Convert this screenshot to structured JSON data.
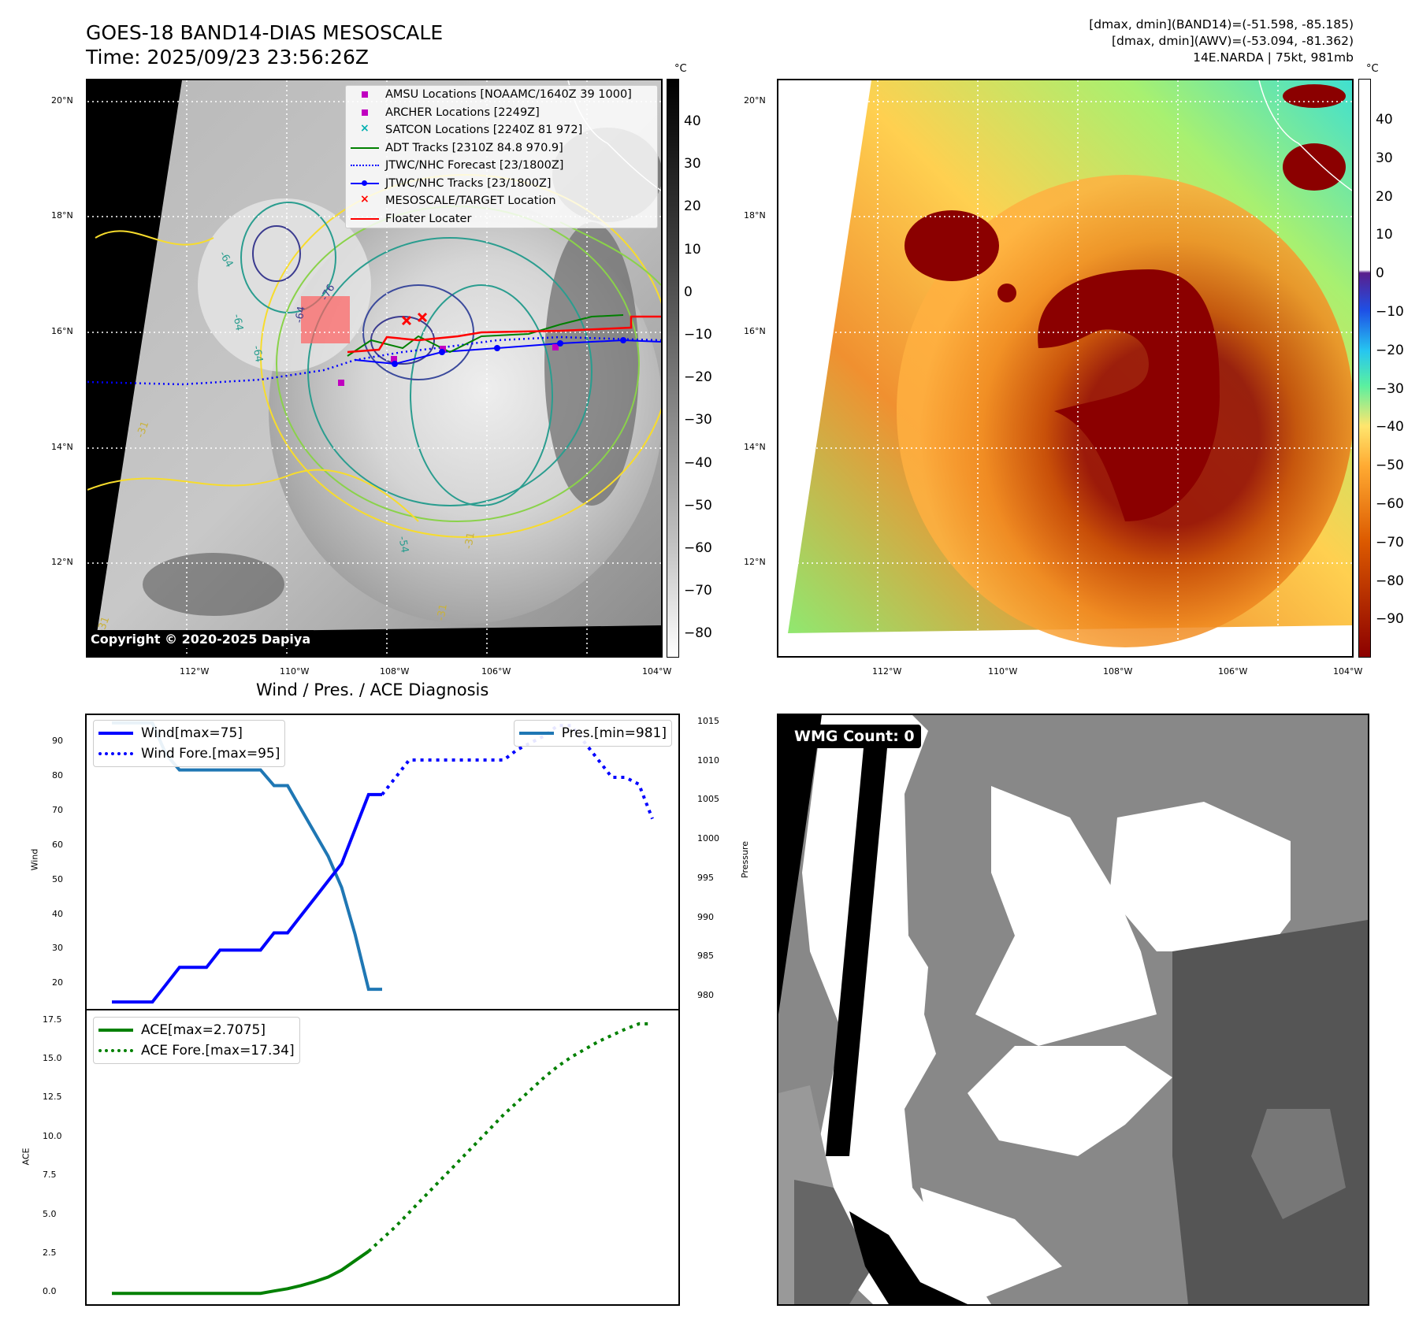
{
  "header": {
    "title_line1": "GOES-18 BAND14-DIAS MESOSCALE",
    "title_line2": "Time: 2025/09/23 23:56:26Z",
    "info_line1": "[dmax, dmin](BAND14)=(-51.598, -85.185)",
    "info_line2": "[dmax, dmin](AWV)=(-53.094, -81.362)",
    "info_line3": "14E.NARDA | 75kt, 981mb"
  },
  "maps": {
    "lat_labels": [
      "20°N",
      "18°N",
      "16°N",
      "14°N",
      "12°N"
    ],
    "lon_labels": [
      "112°W",
      "110°W",
      "108°W",
      "106°W",
      "104°W"
    ],
    "copyright": "Copyright © 2020-2025 Dapiya",
    "colorbar_unit": "°C",
    "left_colorbar_ticks": [
      "40",
      "30",
      "20",
      "10",
      "0",
      "−10",
      "−20",
      "−30",
      "−40",
      "−50",
      "−60",
      "−70",
      "−80"
    ],
    "right_colorbar_ticks": [
      "40",
      "30",
      "20",
      "10",
      "0",
      "−10",
      "−20",
      "−30",
      "−40",
      "−50",
      "−60",
      "−70",
      "−80",
      "−90"
    ],
    "contour_labels": [
      "-64",
      "-76",
      "-64",
      "-64",
      "-64",
      "-54",
      "-31",
      "-31",
      "-31",
      "-31"
    ],
    "legend": [
      {
        "label": "AMSU Locations [NOAAMC/1640Z 39 1000]",
        "symbol": "square",
        "color": "#c000c0"
      },
      {
        "label": "ARCHER Locations [2249Z]",
        "symbol": "square",
        "color": "#c000c0"
      },
      {
        "label": "SATCON Locations [2240Z 81 972]",
        "symbol": "x",
        "color": "#00b0b0"
      },
      {
        "label": "ADT Tracks [2310Z 84.8 970.9]",
        "symbol": "line",
        "color": "#008000"
      },
      {
        "label": "JTWC/NHC Forecast [23/1800Z]",
        "symbol": "dotted",
        "color": "#0000ff"
      },
      {
        "label": "JTWC/NHC Tracks [23/1800Z]",
        "symbol": "line-dot",
        "color": "#0000ff"
      },
      {
        "label": "MESOSCALE/TARGET Location",
        "symbol": "x",
        "color": "#ff0000"
      },
      {
        "label": "Floater Locater",
        "symbol": "line",
        "color": "#ff0000"
      }
    ],
    "wmg_label": "WMG Count: 0"
  },
  "diagnosis": {
    "title": "Wind / Pres. / ACE Diagnosis",
    "wind_ylabel": "Wind",
    "pres_ylabel": "Pressure",
    "ace_ylabel": "ACE",
    "wind_ticks": [
      "90",
      "80",
      "70",
      "60",
      "50",
      "40",
      "30",
      "20"
    ],
    "pres_ticks": [
      "1015",
      "1010",
      "1005",
      "1000",
      "995",
      "990",
      "985",
      "980"
    ],
    "ace_ticks": [
      "17.5",
      "15.0",
      "12.5",
      "10.0",
      "7.5",
      "5.0",
      "2.5",
      "0.0"
    ],
    "legend_wind": "Wind[max=75]",
    "legend_wind_fore": "Wind Fore.[max=95]",
    "legend_pres": "Pres.[min=981]",
    "legend_ace": "ACE[max=2.7075]",
    "legend_ace_fore": "ACE Fore.[max=17.34]"
  },
  "chart_data": [
    {
      "type": "line",
      "title": "Wind / Pres. / ACE Diagnosis",
      "ylabel": "Wind",
      "ylim": [
        13,
        98
      ],
      "y2label": "Pressure",
      "y2lim": [
        978.5,
        1016
      ],
      "grid": false,
      "legend_position": "top-left",
      "x": [
        0,
        1,
        2,
        3,
        4,
        5,
        6,
        7,
        8,
        9,
        10,
        11,
        12,
        13,
        14,
        15,
        16,
        17,
        18,
        19,
        20,
        21,
        22,
        23,
        24,
        25,
        26,
        27,
        28,
        29,
        30,
        31,
        32,
        33,
        34,
        35,
        36,
        37,
        38,
        39,
        40
      ],
      "series": [
        {
          "name": "Wind[max=75]",
          "color": "#0000ff",
          "style": "solid",
          "values": [
            15,
            15,
            15,
            15,
            20,
            25,
            25,
            25,
            30,
            30,
            30,
            30,
            35,
            35,
            40,
            45,
            50,
            55,
            65,
            75,
            75,
            null,
            null,
            null,
            null,
            null,
            null,
            null,
            null,
            null,
            null,
            null,
            null,
            null,
            null,
            null,
            null,
            null,
            null,
            null,
            null
          ]
        },
        {
          "name": "Wind Fore.[max=95]",
          "color": "#0000ff",
          "style": "dotted",
          "values": [
            null,
            null,
            null,
            null,
            null,
            null,
            null,
            null,
            null,
            null,
            null,
            null,
            null,
            null,
            null,
            null,
            null,
            null,
            null,
            null,
            75,
            80,
            85,
            85,
            85,
            85,
            85,
            85,
            85,
            85,
            88,
            90,
            92,
            95,
            95,
            90,
            85,
            80,
            80,
            78,
            68
          ]
        },
        {
          "name": "Pres.[min=981]",
          "color": "#1f77b4",
          "style": "solid",
          "axis": "right",
          "values": [
            1015,
            1015,
            1015,
            1015,
            1011,
            1009,
            1009,
            1009,
            1009,
            1009,
            1009,
            1009,
            1007,
            1007,
            1004,
            1001,
            998,
            994,
            988,
            981,
            981,
            null,
            null,
            null,
            null,
            null,
            null,
            null,
            null,
            null,
            null,
            null,
            null,
            null,
            null,
            null,
            null,
            null,
            null,
            null,
            null
          ]
        }
      ]
    },
    {
      "type": "line",
      "ylabel": "ACE",
      "ylim": [
        -0.7,
        18.2
      ],
      "grid": false,
      "legend_position": "top-left",
      "x": [
        0,
        1,
        2,
        3,
        4,
        5,
        6,
        7,
        8,
        9,
        10,
        11,
        12,
        13,
        14,
        15,
        16,
        17,
        18,
        19,
        20,
        21,
        22,
        23,
        24,
        25,
        26,
        27,
        28,
        29,
        30,
        31,
        32,
        33,
        34,
        35,
        36,
        37,
        38,
        39,
        40
      ],
      "series": [
        {
          "name": "ACE[max=2.7075]",
          "color": "#008000",
          "style": "solid",
          "values": [
            0,
            0,
            0,
            0,
            0,
            0,
            0,
            0,
            0,
            0,
            0,
            0,
            0.15,
            0.3,
            0.5,
            0.75,
            1.05,
            1.5,
            2.1,
            2.7075,
            null,
            null,
            null,
            null,
            null,
            null,
            null,
            null,
            null,
            null,
            null,
            null,
            null,
            null,
            null,
            null,
            null,
            null,
            null,
            null,
            null
          ]
        },
        {
          "name": "ACE Fore.[max=17.34]",
          "color": "#008000",
          "style": "dotted",
          "values": [
            null,
            null,
            null,
            null,
            null,
            null,
            null,
            null,
            null,
            null,
            null,
            null,
            null,
            null,
            null,
            null,
            null,
            null,
            null,
            2.7075,
            3.5,
            4.3,
            5.2,
            6.1,
            7.0,
            7.9,
            8.8,
            9.7,
            10.6,
            11.5,
            12.3,
            13.1,
            13.9,
            14.6,
            15.2,
            15.7,
            16.2,
            16.6,
            17.0,
            17.34,
            17.34
          ]
        }
      ]
    }
  ]
}
